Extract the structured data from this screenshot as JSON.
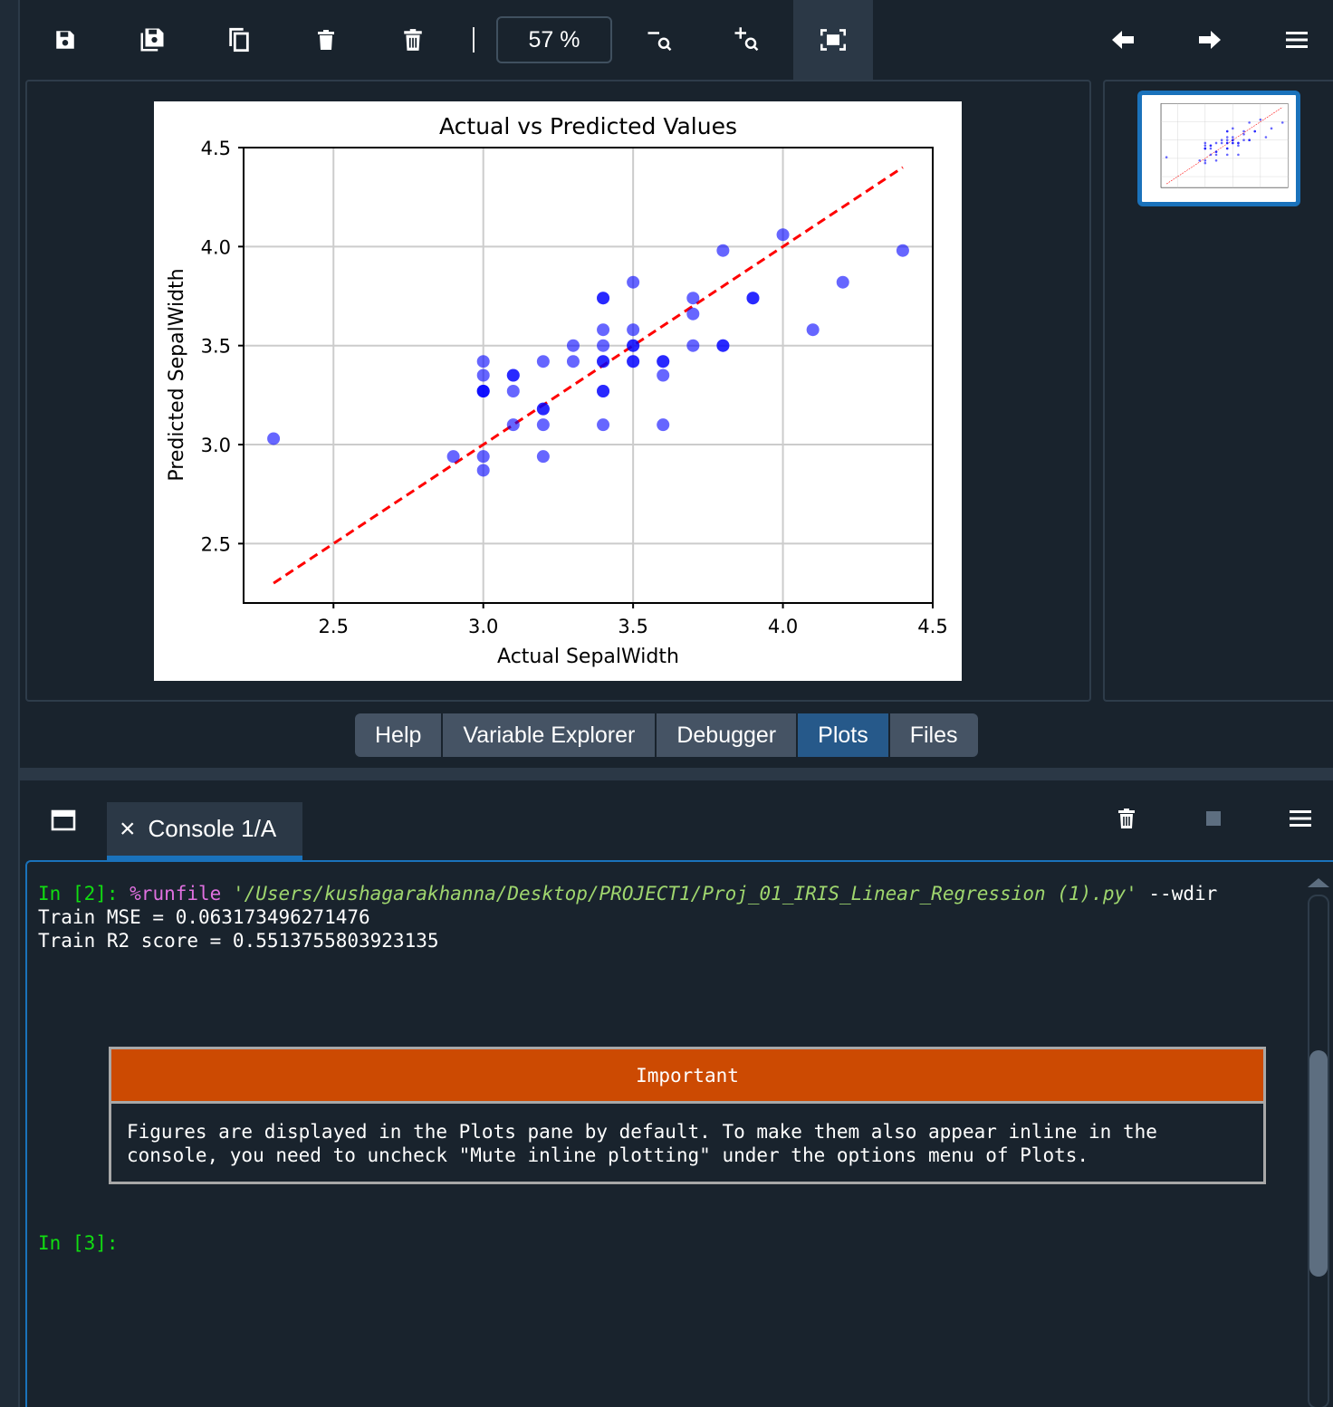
{
  "toolbar": {
    "zoom_level": "57 %",
    "buttons": [
      "save-icon",
      "save-all-icon",
      "copy-icon",
      "delete-icon",
      "delete-all-icon",
      "zoom-out-icon",
      "zoom-in-icon",
      "fit-icon",
      "previous-icon",
      "next-icon",
      "menu-icon"
    ]
  },
  "chart_data": {
    "type": "scatter",
    "title": "Actual vs Predicted Values",
    "xlabel": "Actual SepalWidth",
    "ylabel": "Predicted SepalWidth",
    "xlim": [
      2.2,
      4.5
    ],
    "ylim": [
      2.2,
      4.5
    ],
    "xticks": [
      "2.5",
      "3.0",
      "3.5",
      "4.0",
      "4.5"
    ],
    "yticks": [
      "2.5",
      "3.0",
      "3.5",
      "4.0",
      "4.5"
    ],
    "grid": true,
    "points_color": "#0000ff",
    "line_color": "#ff0000",
    "series": [
      {
        "kind": "points",
        "x": [
          2.3,
          2.9,
          3.0,
          3.0,
          3.0,
          3.0,
          3.0,
          3.0,
          3.0,
          3.1,
          3.1,
          3.1,
          3.1,
          3.2,
          3.2,
          3.2,
          3.2,
          3.2,
          3.3,
          3.3,
          3.4,
          3.4,
          3.4,
          3.4,
          3.4,
          3.4,
          3.4,
          3.4,
          3.4,
          3.5,
          3.5,
          3.5,
          3.5,
          3.5,
          3.5,
          3.6,
          3.6,
          3.6,
          3.6,
          3.7,
          3.7,
          3.7,
          3.8,
          3.8,
          3.8,
          3.9,
          3.9,
          4.0,
          4.1,
          4.2,
          4.4
        ],
        "y": [
          3.03,
          2.94,
          2.87,
          2.94,
          3.27,
          3.27,
          3.35,
          3.42,
          3.27,
          3.1,
          3.27,
          3.35,
          3.35,
          2.94,
          3.1,
          3.18,
          3.18,
          3.42,
          3.42,
          3.5,
          3.1,
          3.27,
          3.27,
          3.42,
          3.42,
          3.5,
          3.58,
          3.74,
          3.74,
          3.42,
          3.42,
          3.5,
          3.58,
          3.82,
          3.5,
          3.1,
          3.35,
          3.42,
          3.42,
          3.5,
          3.66,
          3.74,
          3.5,
          3.5,
          3.98,
          3.74,
          3.74,
          4.06,
          3.58,
          3.82,
          3.98
        ]
      },
      {
        "kind": "line",
        "x": [
          2.3,
          4.4
        ],
        "y": [
          2.3,
          4.4
        ]
      }
    ]
  },
  "pane_tabs": [
    {
      "label": "Help",
      "active": false
    },
    {
      "label": "Variable Explorer",
      "active": false
    },
    {
      "label": "Debugger",
      "active": false
    },
    {
      "label": "Plots",
      "active": true
    },
    {
      "label": "Files",
      "active": false
    }
  ],
  "console": {
    "tab_label": "Console 1/A",
    "close_glyph": "×",
    "prompt2": "In [2]: ",
    "cmd_magic": "%runfile",
    "cmd_path": " '/Users/kushagarakhanna/Desktop/PROJECT1/Proj_01_IRIS_Linear_Regression (1).py'",
    "cmd_flag": " --wdir",
    "output1": "Train MSE = 0.063173496271476",
    "output2": "Train R2 score = 0.5513755803923135",
    "important_title": "Important",
    "important_text": "Figures are displayed in the Plots pane by default. To make them also appear inline in the\nconsole, you need to uncheck \"Mute inline plotting\" under the options menu of Plots.",
    "prompt3": "In [3]:"
  }
}
